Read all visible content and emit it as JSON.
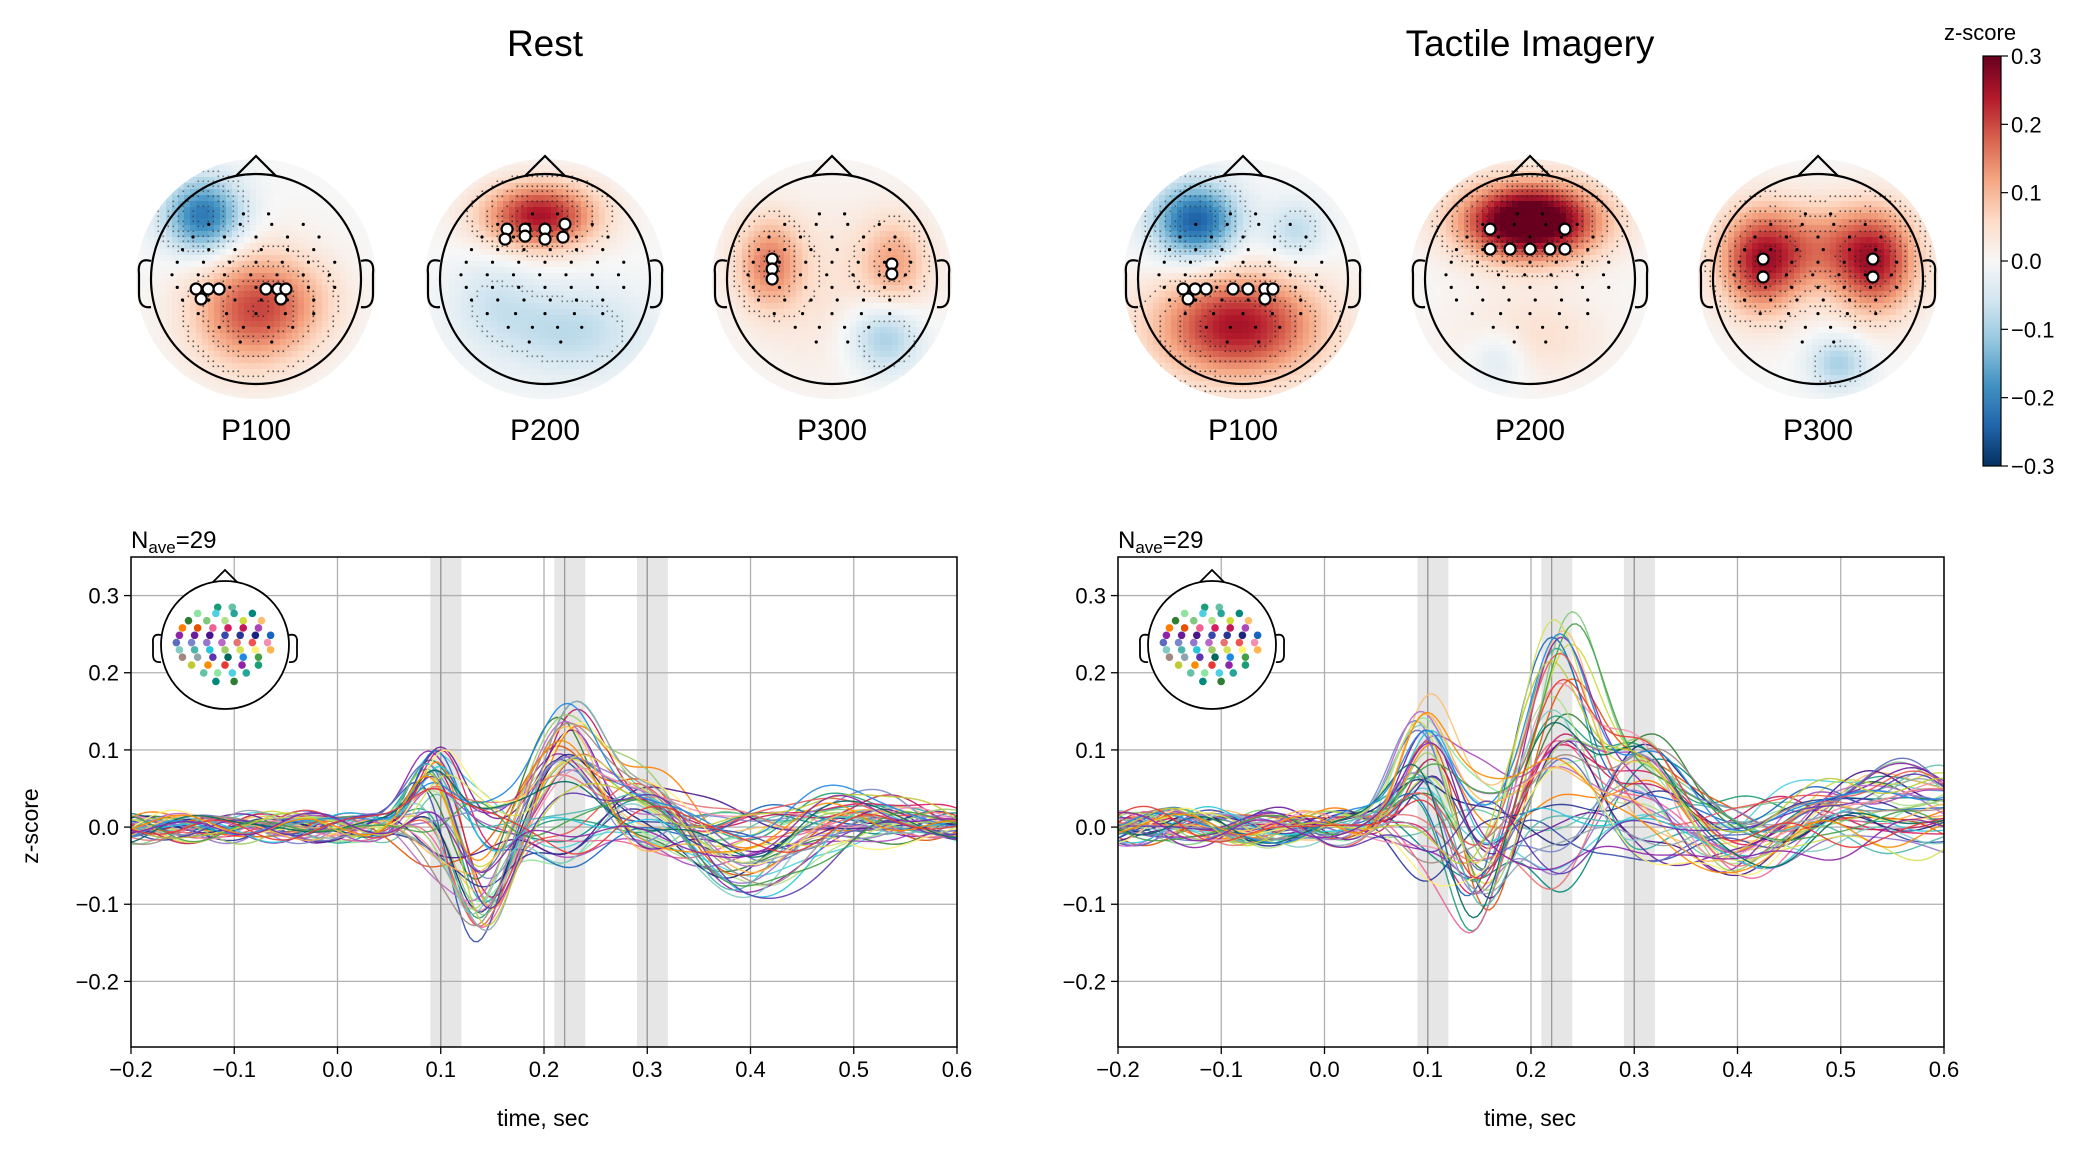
{
  "colors": {
    "cmap": [
      "#053061",
      "#2166ac",
      "#4393c3",
      "#92c5de",
      "#d1e5f0",
      "#f7f7f7",
      "#fddbc7",
      "#f4a582",
      "#d6604d",
      "#b2182b",
      "#67001f"
    ],
    "grid": "#b0b0b0",
    "shade": "#d9d9d9"
  },
  "panels": [
    {
      "id": "rest",
      "title": "Rest",
      "maps": [
        {
          "label": "P100",
          "pattern": [
            [
              -0.5,
              0.6,
              -0.22,
              0.26,
              0.25
            ],
            [
              -0.05,
              -0.3,
              0.18,
              0.4,
              0.38
            ],
            [
              0.4,
              -0.2,
              0.05,
              0.35,
              0.3
            ]
          ],
          "sig": [
            [
              -0.55,
              -0.2
            ],
            [
              -0.6,
              -0.1
            ],
            [
              -0.48,
              -0.1
            ],
            [
              -0.37,
              -0.1
            ],
            [
              0.1,
              -0.1
            ],
            [
              0.22,
              -0.1
            ],
            [
              0.3,
              -0.1
            ],
            [
              0.25,
              -0.2
            ]
          ]
        },
        {
          "label": "P200",
          "pattern": [
            [
              -0.05,
              0.6,
              0.25,
              0.38,
              0.22
            ],
            [
              0.25,
              -0.5,
              -0.08,
              0.5,
              0.3
            ],
            [
              -0.5,
              -0.2,
              -0.05,
              0.3,
              0.3
            ]
          ],
          "sig": [
            [
              -0.38,
              0.5
            ],
            [
              -0.2,
              0.5
            ],
            [
              0.0,
              0.5
            ],
            [
              0.2,
              0.55
            ],
            [
              -0.4,
              0.4
            ],
            [
              -0.2,
              0.43
            ],
            [
              0.0,
              0.4
            ],
            [
              0.18,
              0.42
            ]
          ]
        },
        {
          "label": "P300",
          "pattern": [
            [
              -0.6,
              0.15,
              0.14,
              0.22,
              0.3
            ],
            [
              0.6,
              0.15,
              0.1,
              0.22,
              0.3
            ],
            [
              0.5,
              -0.55,
              -0.12,
              0.25,
              0.25
            ],
            [
              0.05,
              -0.1,
              0.04,
              0.6,
              0.6
            ]
          ],
          "sig": [
            [
              -0.6,
              0.2
            ],
            [
              -0.6,
              0.1
            ],
            [
              -0.6,
              0.0
            ],
            [
              0.6,
              0.15
            ],
            [
              0.6,
              0.05
            ]
          ]
        }
      ],
      "butterfly": {
        "nave": "29",
        "ylabel": "z-score",
        "xlabel": "time, sec",
        "xlim": [
          -0.2,
          0.6
        ],
        "ylim": [
          -0.285,
          0.35
        ],
        "xticks": [
          "-0.2",
          "-0.1",
          "0.0",
          "0.1",
          "0.2",
          "0.3",
          "0.4",
          "0.5",
          "0.6"
        ],
        "yticks": [
          "-0.2",
          "-0.1",
          "0.0",
          "0.1",
          "0.2",
          "0.3"
        ],
        "shaded": [
          [
            0.09,
            0.12
          ],
          [
            0.21,
            0.24
          ],
          [
            0.29,
            0.32
          ]
        ],
        "vlines": [
          0.1,
          0.22,
          0.3
        ],
        "components": [
          {
            "t": 0.095,
            "w": 0.022,
            "amp": 0.075
          },
          {
            "t": 0.14,
            "w": 0.025,
            "amp": -0.1
          },
          {
            "t": 0.225,
            "w": 0.03,
            "amp": 0.12
          },
          {
            "t": 0.3,
            "w": 0.035,
            "amp": 0.05
          },
          {
            "t": 0.4,
            "w": 0.05,
            "amp": -0.06
          },
          {
            "t": 0.5,
            "w": 0.05,
            "amp": 0.03
          }
        ],
        "noise": 0.018,
        "seed": 11
      }
    },
    {
      "id": "tactile",
      "title": "Tactile Imagery",
      "maps": [
        {
          "label": "P100",
          "pattern": [
            [
              -0.45,
              0.55,
              -0.25,
              0.28,
              0.25
            ],
            [
              -0.05,
              -0.45,
              0.25,
              0.55,
              0.35
            ],
            [
              0.5,
              0.45,
              -0.08,
              0.2,
              0.2
            ]
          ],
          "sig": [
            [
              -0.55,
              -0.2
            ],
            [
              -0.6,
              -0.1
            ],
            [
              -0.48,
              -0.1
            ],
            [
              -0.37,
              -0.1
            ],
            [
              -0.1,
              -0.1
            ],
            [
              0.05,
              -0.1
            ],
            [
              0.22,
              -0.1
            ],
            [
              0.3,
              -0.1
            ],
            [
              0.22,
              -0.2
            ]
          ]
        },
        {
          "label": "P200",
          "pattern": [
            [
              0.0,
              0.55,
              0.38,
              0.45,
              0.25
            ],
            [
              0.0,
              -0.55,
              0.05,
              0.5,
              0.3
            ],
            [
              -0.3,
              -0.75,
              -0.06,
              0.2,
              0.2
            ]
          ],
          "sig": [
            [
              -0.4,
              0.5
            ],
            [
              -0.4,
              0.3
            ],
            [
              -0.2,
              0.3
            ],
            [
              0.0,
              0.3
            ],
            [
              0.2,
              0.3
            ],
            [
              0.35,
              0.3
            ],
            [
              0.35,
              0.5
            ]
          ]
        },
        {
          "label": "P300",
          "pattern": [
            [
              -0.55,
              0.15,
              0.2,
              0.28,
              0.35
            ],
            [
              0.55,
              0.15,
              0.2,
              0.28,
              0.35
            ],
            [
              0.0,
              0.3,
              0.12,
              0.5,
              0.3
            ],
            [
              0.2,
              -0.8,
              -0.1,
              0.2,
              0.18
            ]
          ],
          "sig": [
            [
              -0.55,
              0.2
            ],
            [
              -0.55,
              0.02
            ],
            [
              0.55,
              0.2
            ],
            [
              0.55,
              0.02
            ]
          ]
        }
      ],
      "butterfly": {
        "nave": "29",
        "ylabel": "",
        "xlabel": "time, sec",
        "xlim": [
          -0.2,
          0.6
        ],
        "ylim": [
          -0.285,
          0.35
        ],
        "xticks": [
          "-0.2",
          "-0.1",
          "0.0",
          "0.1",
          "0.2",
          "0.3",
          "0.4",
          "0.5",
          "0.6"
        ],
        "yticks": [
          "-0.2",
          "-0.1",
          "0.0",
          "0.1",
          "0.2",
          "0.3"
        ],
        "shaded": [
          [
            0.09,
            0.12
          ],
          [
            0.21,
            0.24
          ],
          [
            0.29,
            0.32
          ]
        ],
        "vlines": [
          0.1,
          0.22,
          0.3
        ],
        "components": [
          {
            "t": 0.1,
            "w": 0.025,
            "amp": 0.11
          },
          {
            "t": 0.15,
            "w": 0.025,
            "amp": -0.1
          },
          {
            "t": 0.23,
            "w": 0.03,
            "amp": 0.18
          },
          {
            "t": 0.31,
            "w": 0.035,
            "amp": 0.08
          },
          {
            "t": 0.4,
            "w": 0.05,
            "amp": -0.04
          },
          {
            "t": 0.55,
            "w": 0.08,
            "amp": 0.05
          }
        ],
        "noise": 0.022,
        "seed": 29
      }
    }
  ],
  "colorbar": {
    "label": "z-score",
    "ticks": [
      "0.3",
      "0.2",
      "0.1",
      "0.0",
      "−0.1",
      "−0.2",
      "−0.3"
    ]
  },
  "chart_data": [
    {
      "type": "heatmap",
      "title": "Rest",
      "maps": [
        "P100",
        "P200",
        "P300"
      ],
      "colorbar": {
        "label": "z-score",
        "range": [
          -0.3,
          0.3
        ]
      }
    },
    {
      "type": "heatmap",
      "title": "Tactile Imagery",
      "maps": [
        "P100",
        "P200",
        "P300"
      ],
      "colorbar": {
        "label": "z-score",
        "range": [
          -0.3,
          0.3
        ]
      }
    },
    {
      "type": "line",
      "annotation": "Nave=29",
      "xlabel": "time, sec",
      "ylabel": "z-score",
      "xlim": [
        -0.2,
        0.6
      ],
      "ylim": [
        -0.285,
        0.35
      ],
      "shaded_windows": [
        [
          0.09,
          0.12
        ],
        [
          0.21,
          0.24
        ],
        [
          0.29,
          0.32
        ]
      ],
      "grid": true
    },
    {
      "type": "line",
      "annotation": "Nave=29",
      "xlabel": "time, sec",
      "xlim": [
        -0.2,
        0.6
      ],
      "ylim": [
        -0.285,
        0.35
      ],
      "shaded_windows": [
        [
          0.09,
          0.12
        ],
        [
          0.21,
          0.24
        ],
        [
          0.29,
          0.32
        ]
      ],
      "grid": true
    }
  ]
}
